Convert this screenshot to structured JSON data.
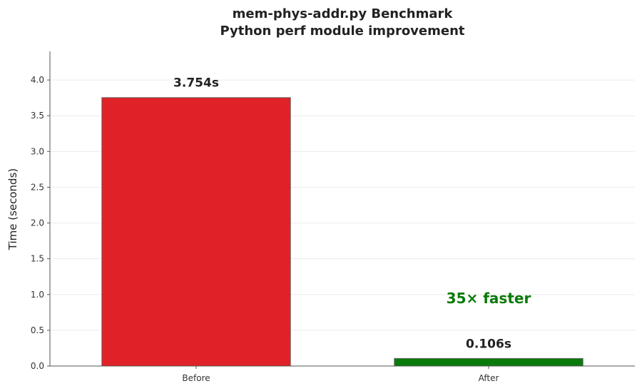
{
  "chart_data": {
    "type": "bar",
    "title": "mem-phys-addr.py Benchmark",
    "subtitle": "Python perf module improvement",
    "xlabel": "",
    "ylabel": "Time (seconds)",
    "categories": [
      "Before",
      "After"
    ],
    "values": [
      3.754,
      0.106
    ],
    "data_labels": [
      "3.754s",
      "0.106s"
    ],
    "colors": [
      "#e02127",
      "#0a7a0a"
    ],
    "ylim": [
      0,
      4.4
    ],
    "yticks": [
      0.0,
      0.5,
      1.0,
      1.5,
      2.0,
      2.5,
      3.0,
      3.5,
      4.0
    ],
    "ytick_labels": [
      "0.0",
      "0.5",
      "1.0",
      "1.5",
      "2.0",
      "2.5",
      "3.0",
      "3.5",
      "4.0"
    ],
    "grid": true,
    "annotation": {
      "text": "35× faster",
      "color": "#0a7a0a",
      "category": "After",
      "y": 0.95
    }
  }
}
